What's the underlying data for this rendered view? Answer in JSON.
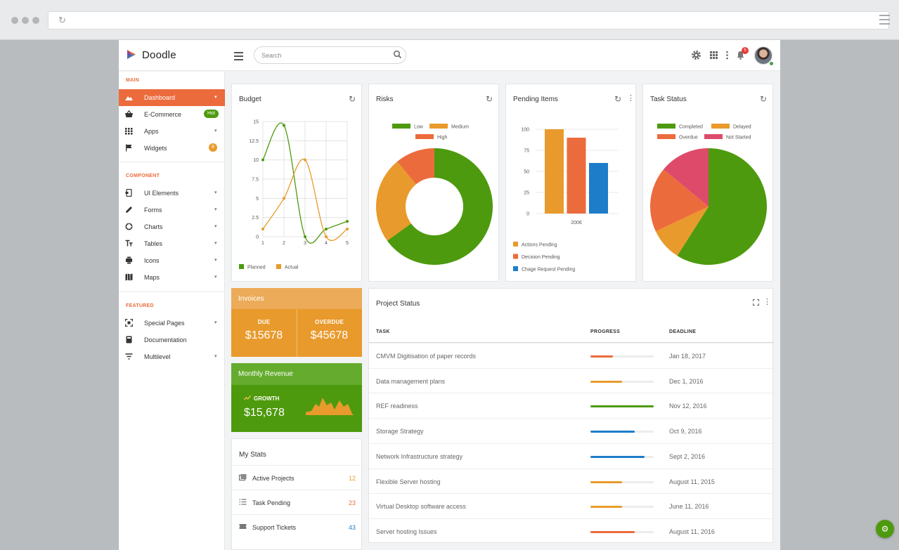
{
  "app": {
    "name": "Doodle"
  },
  "search": {
    "placeholder": "Search"
  },
  "notifications": {
    "count": "5"
  },
  "sidebar": {
    "sections": [
      {
        "title": "MAIN"
      },
      {
        "title": "COMPONENT"
      },
      {
        "title": "FEATURED"
      }
    ],
    "items": [
      {
        "label": "Dashboard",
        "icon": "dashboard-icon"
      },
      {
        "label": "E-Commerce",
        "icon": "basket-icon",
        "badge": "Hot"
      },
      {
        "label": "Apps",
        "icon": "grid-icon"
      },
      {
        "label": "Widgets",
        "icon": "flag-icon",
        "badge": "8"
      },
      {
        "label": "UI Elements",
        "icon": "ui-elements-icon"
      },
      {
        "label": "Forms",
        "icon": "pencil-icon"
      },
      {
        "label": "Charts",
        "icon": "chart-icon"
      },
      {
        "label": "Tables",
        "icon": "text-icon"
      },
      {
        "label": "Icons",
        "icon": "icons-icon"
      },
      {
        "label": "Maps",
        "icon": "map-icon"
      },
      {
        "label": "Special Pages",
        "icon": "pages-icon"
      },
      {
        "label": "Documentation",
        "icon": "book-icon"
      },
      {
        "label": "Multilevel",
        "icon": "filter-icon"
      }
    ]
  },
  "colors": {
    "accent": "#ec6b3c",
    "green": "#4e9a0e",
    "orange": "#e99a2c",
    "blue": "#1e7dc8",
    "pink": "#de4a6a"
  },
  "budget": {
    "title": "Budget",
    "chart_data": {
      "type": "line",
      "x": [
        1,
        2,
        3,
        4,
        5
      ],
      "series": [
        {
          "name": "Planned",
          "values": [
            10,
            14.5,
            0,
            1,
            2
          ]
        },
        {
          "name": "Actual",
          "values": [
            1,
            5,
            10,
            0,
            1
          ]
        }
      ],
      "ylim": [
        0,
        15
      ],
      "yticks": [
        "0",
        "2.5",
        "5",
        "7.5",
        "10",
        "12.5",
        "15"
      ],
      "xticks": [
        "1",
        "2",
        "3",
        "4",
        "5"
      ],
      "grid": true,
      "legend": "bottom-left"
    }
  },
  "risks": {
    "title": "Risks",
    "chart_data": {
      "type": "pie",
      "donut": true,
      "labels": [
        "Low",
        "Medium",
        "High"
      ],
      "values": [
        65,
        24,
        11
      ],
      "legend": "top"
    }
  },
  "pending": {
    "title": "Pending Items",
    "chart_data": {
      "type": "bar",
      "categories": [
        "2006"
      ],
      "series": [
        {
          "name": "Actions Pending",
          "values": [
            100
          ]
        },
        {
          "name": "Decision Pending",
          "values": [
            90
          ]
        },
        {
          "name": "Chage Request Pending",
          "values": [
            60
          ]
        }
      ],
      "ylim": [
        0,
        100
      ],
      "yticks": [
        "0",
        "25",
        "50",
        "75",
        "100"
      ],
      "legend": "bottom"
    }
  },
  "task_status": {
    "title": "Task Status",
    "chart_data": {
      "type": "pie",
      "labels": [
        "Completed",
        "Delayed",
        "Overdue",
        "Not Started"
      ],
      "values": [
        59,
        9,
        18,
        14
      ],
      "legend": "top"
    }
  },
  "invoices": {
    "title": "Invoices",
    "due_label": "DUE",
    "due_value": "$15678",
    "overdue_label": "OVERDUE",
    "overdue_value": "$45678"
  },
  "revenue": {
    "title": "Monthly Revenue",
    "growth_label": "GROWTH",
    "value": "$15,678"
  },
  "my_stats": {
    "title": "My Stats",
    "rows": [
      {
        "label": "Active Projects",
        "value": "12",
        "color": "#e99a2c",
        "icon": "projects-icon"
      },
      {
        "label": "Task Pending",
        "value": "23",
        "color": "#ec6b3c",
        "icon": "list-icon"
      },
      {
        "label": "Support Tickets",
        "value": "43",
        "color": "#1e7dc8",
        "icon": "ticket-icon"
      }
    ]
  },
  "project_status": {
    "title": "Project Status",
    "headers": {
      "task": "TASK",
      "progress": "PROGRESS",
      "deadline": "DEADLINE"
    },
    "rows": [
      {
        "task": "CMVM Digitisation of paper records",
        "progress": 0.35,
        "color": "#ec6b3c",
        "deadline": "Jan 18, 2017"
      },
      {
        "task": "Data management plans",
        "progress": 0.5,
        "color": "#e99a2c",
        "deadline": "Dec 1, 2016"
      },
      {
        "task": "REF readiness",
        "progress": 1.0,
        "color": "#4e9a0e",
        "deadline": "Nov 12, 2016"
      },
      {
        "task": "Storage Strategy",
        "progress": 0.7,
        "color": "#1e7dc8",
        "deadline": "Oct 9, 2016"
      },
      {
        "task": "Network Infrastructure strategy",
        "progress": 0.85,
        "color": "#1e7dc8",
        "deadline": "Sept 2, 2016"
      },
      {
        "task": "Flexible Server hosting",
        "progress": 0.5,
        "color": "#e99a2c",
        "deadline": "August 11, 2015"
      },
      {
        "task": "Virtual Desktop software access",
        "progress": 0.5,
        "color": "#e99a2c",
        "deadline": "June 11, 2016"
      },
      {
        "task": "Server hosting Issues",
        "progress": 0.7,
        "color": "#ec6b3c",
        "deadline": "August 11, 2016"
      }
    ]
  }
}
